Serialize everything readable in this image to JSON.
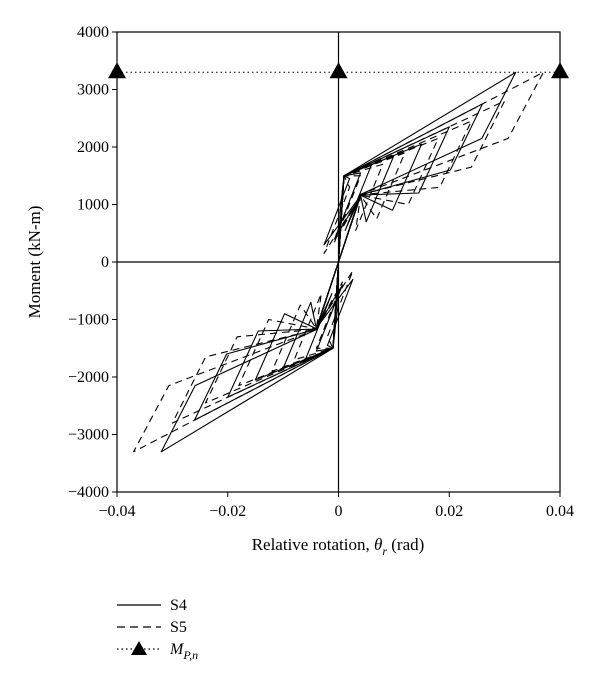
{
  "chart_data": {
    "type": "line",
    "xlabel_text": "Relative rotation, ",
    "xlabel_symbol": "θ",
    "xlabel_sub": "r",
    "xlabel_unit": " (rad)",
    "ylabel": "Moment (kN-m)",
    "xlim": [
      -0.04,
      0.04
    ],
    "ylim": [
      -4000,
      4000
    ],
    "x_ticks": [
      -0.04,
      -0.02,
      0,
      0.02,
      0.04
    ],
    "x_tick_labels": [
      "−0.04",
      "−0.02",
      "0",
      "0.02",
      "0.04"
    ],
    "y_ticks": [
      4000,
      3000,
      2000,
      1000,
      0,
      -1000,
      -2000,
      -3000,
      -4000
    ],
    "y_tick_labels": [
      "4000",
      "3000",
      "2000",
      "1000",
      "0",
      "−1000",
      "−2000",
      "−3000",
      "−4000"
    ],
    "grid": false,
    "legend_position": "bottom-left",
    "mpn_value": 3300,
    "mpn_marker_x": [
      -0.04,
      0,
      0.04
    ],
    "series": [
      {
        "name": "S4",
        "style": "solid",
        "loops": [
          {
            "ep": 0.002,
            "mt": 1450
          },
          {
            "ep": 0.004,
            "mt": 1550
          },
          {
            "ep": 0.006,
            "mt": 1700
          },
          {
            "ep": 0.01,
            "mt": 1850
          },
          {
            "ep": 0.015,
            "mt": 2050
          },
          {
            "ep": 0.02,
            "mt": 2350
          },
          {
            "ep": 0.026,
            "mt": 2750
          },
          {
            "ep": 0.032,
            "mt": 3300
          }
        ]
      },
      {
        "name": "S5",
        "style": "dashed",
        "loops": [
          {
            "ep": 0.002,
            "mt": 1300
          },
          {
            "ep": 0.004,
            "mt": 1500
          },
          {
            "ep": 0.008,
            "mt": 1700
          },
          {
            "ep": 0.012,
            "mt": 1900
          },
          {
            "ep": 0.018,
            "mt": 2150
          },
          {
            "ep": 0.024,
            "mt": 2450
          },
          {
            "ep": 0.03,
            "mt": 2800
          },
          {
            "ep": 0.037,
            "mt": 3300
          }
        ]
      }
    ],
    "legend": [
      {
        "style": "solid",
        "label": "S4"
      },
      {
        "style": "dashed",
        "label": "S5"
      },
      {
        "style": "dotted-triangle",
        "label_main": "M",
        "label_sub": "P,n"
      }
    ]
  }
}
